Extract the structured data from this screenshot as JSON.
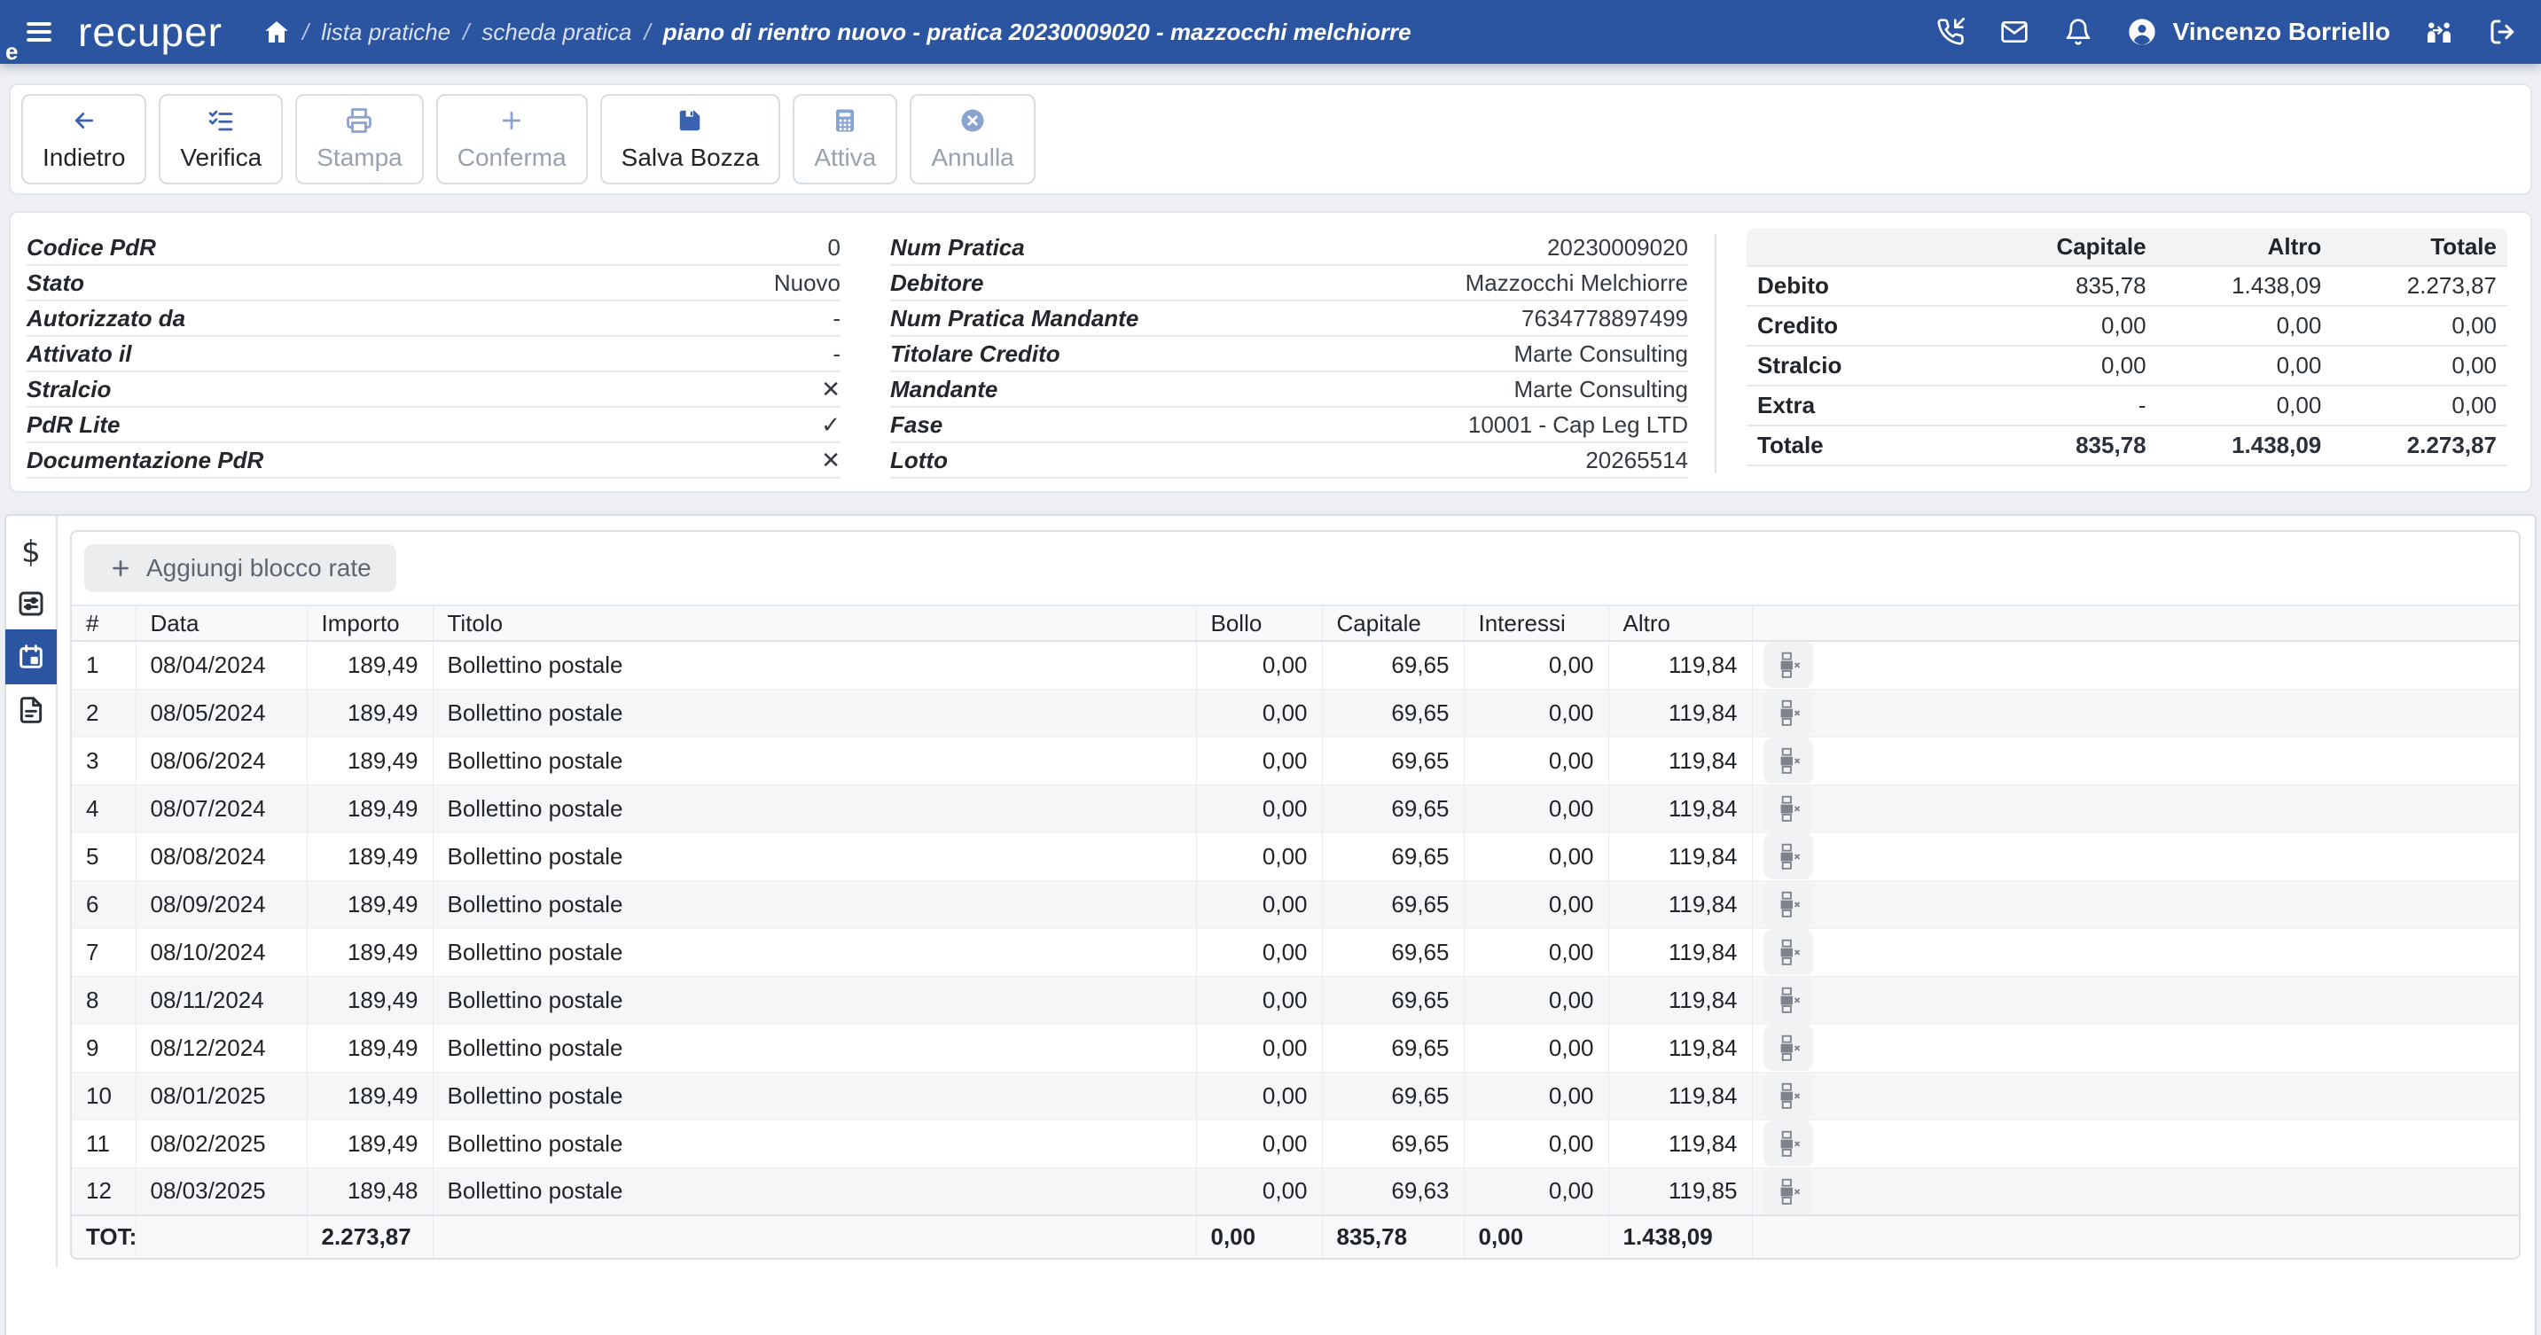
{
  "colors": {
    "navbar_bg": "#2c55a1",
    "page_bg": "#edeff3",
    "accent_blue": "#3a62ae",
    "active_tab_bg": "#2c55a1",
    "disabled_text": "#99a2ac",
    "text": "#212529",
    "table_header_bg": "#f8f9fa",
    "row_alt_bg": "#f5f6f8"
  },
  "navbar": {
    "logo": "recuper",
    "menu_overflow": "e",
    "breadcrumb": [
      "lista pratiche",
      "scheda pratica",
      "piano di rientro nuovo - pratica 20230009020 - mazzocchi melchiorre"
    ],
    "user_name": "Vincenzo Borriello"
  },
  "toolbar": {
    "buttons": [
      {
        "name": "indietro",
        "label": "Indietro",
        "icon": "arrow-left",
        "enabled": true
      },
      {
        "name": "verifica",
        "label": "Verifica",
        "icon": "list-check",
        "enabled": true
      },
      {
        "name": "stampa",
        "label": "Stampa",
        "icon": "printer",
        "enabled": false
      },
      {
        "name": "conferma",
        "label": "Conferma",
        "icon": "plus",
        "enabled": false
      },
      {
        "name": "salva-bozza",
        "label": "Salva Bozza",
        "icon": "save",
        "enabled": true
      },
      {
        "name": "attiva",
        "label": "Attiva",
        "icon": "calculator",
        "enabled": false
      },
      {
        "name": "annulla",
        "label": "Annulla",
        "icon": "x-circle",
        "enabled": false
      }
    ]
  },
  "details": {
    "left": [
      {
        "label": "Codice PdR",
        "value": "0"
      },
      {
        "label": "Stato",
        "value": "Nuovo"
      },
      {
        "label": "Autorizzato da",
        "value": "-"
      },
      {
        "label": "Attivato il",
        "value": "-"
      },
      {
        "label": "Stralcio",
        "value": "✕"
      },
      {
        "label": "PdR Lite",
        "value": "✓"
      },
      {
        "label": "Documentazione PdR",
        "value": "✕"
      }
    ],
    "right": [
      {
        "label": "Num Pratica",
        "value": "20230009020"
      },
      {
        "label": "Debitore",
        "value": "Mazzocchi Melchiorre"
      },
      {
        "label": "Num Pratica Mandante",
        "value": "7634778897499"
      },
      {
        "label": "Titolare Credito",
        "value": "Marte Consulting"
      },
      {
        "label": "Mandante",
        "value": "Marte Consulting"
      },
      {
        "label": "Fase",
        "value": "10001 - Cap Leg LTD"
      },
      {
        "label": "Lotto",
        "value": "20265514"
      }
    ]
  },
  "summary": {
    "columns": [
      "Capitale",
      "Altro",
      "Totale"
    ],
    "rows": [
      {
        "label": "Debito",
        "values": [
          "835,78",
          "1.438,09",
          "2.273,87"
        ],
        "bold": false
      },
      {
        "label": "Credito",
        "values": [
          "0,00",
          "0,00",
          "0,00"
        ],
        "bold": false
      },
      {
        "label": "Stralcio",
        "values": [
          "0,00",
          "0,00",
          "0,00"
        ],
        "bold": false
      },
      {
        "label": "Extra",
        "values": [
          "-",
          "0,00",
          "0,00"
        ],
        "bold": false
      },
      {
        "label": "Totale",
        "values": [
          "835,78",
          "1.438,09",
          "2.273,87"
        ],
        "bold": true
      }
    ]
  },
  "side_tabs": [
    {
      "name": "amounts",
      "icon": "dollar",
      "active": false
    },
    {
      "name": "settings",
      "icon": "sliders",
      "active": false
    },
    {
      "name": "rate-plan",
      "icon": "calendar",
      "active": true
    },
    {
      "name": "documents",
      "icon": "file-text",
      "active": false
    }
  ],
  "rate_section": {
    "add_button_label": "Aggiungi blocco rate",
    "columns": [
      "#",
      "Data",
      "Importo",
      "Titolo",
      "Bollo",
      "Capitale",
      "Interessi",
      "Altro",
      ""
    ],
    "rows": [
      {
        "n": "1",
        "data": "08/04/2024",
        "importo": "189,49",
        "titolo": "Bollettino postale",
        "bollo": "0,00",
        "capitale": "69,65",
        "interessi": "0,00",
        "altro": "119,84"
      },
      {
        "n": "2",
        "data": "08/05/2024",
        "importo": "189,49",
        "titolo": "Bollettino postale",
        "bollo": "0,00",
        "capitale": "69,65",
        "interessi": "0,00",
        "altro": "119,84"
      },
      {
        "n": "3",
        "data": "08/06/2024",
        "importo": "189,49",
        "titolo": "Bollettino postale",
        "bollo": "0,00",
        "capitale": "69,65",
        "interessi": "0,00",
        "altro": "119,84"
      },
      {
        "n": "4",
        "data": "08/07/2024",
        "importo": "189,49",
        "titolo": "Bollettino postale",
        "bollo": "0,00",
        "capitale": "69,65",
        "interessi": "0,00",
        "altro": "119,84"
      },
      {
        "n": "5",
        "data": "08/08/2024",
        "importo": "189,49",
        "titolo": "Bollettino postale",
        "bollo": "0,00",
        "capitale": "69,65",
        "interessi": "0,00",
        "altro": "119,84"
      },
      {
        "n": "6",
        "data": "08/09/2024",
        "importo": "189,49",
        "titolo": "Bollettino postale",
        "bollo": "0,00",
        "capitale": "69,65",
        "interessi": "0,00",
        "altro": "119,84"
      },
      {
        "n": "7",
        "data": "08/10/2024",
        "importo": "189,49",
        "titolo": "Bollettino postale",
        "bollo": "0,00",
        "capitale": "69,65",
        "interessi": "0,00",
        "altro": "119,84"
      },
      {
        "n": "8",
        "data": "08/11/2024",
        "importo": "189,49",
        "titolo": "Bollettino postale",
        "bollo": "0,00",
        "capitale": "69,65",
        "interessi": "0,00",
        "altro": "119,84"
      },
      {
        "n": "9",
        "data": "08/12/2024",
        "importo": "189,49",
        "titolo": "Bollettino postale",
        "bollo": "0,00",
        "capitale": "69,65",
        "interessi": "0,00",
        "altro": "119,84"
      },
      {
        "n": "10",
        "data": "08/01/2025",
        "importo": "189,49",
        "titolo": "Bollettino postale",
        "bollo": "0,00",
        "capitale": "69,65",
        "interessi": "0,00",
        "altro": "119,84"
      },
      {
        "n": "11",
        "data": "08/02/2025",
        "importo": "189,49",
        "titolo": "Bollettino postale",
        "bollo": "0,00",
        "capitale": "69,65",
        "interessi": "0,00",
        "altro": "119,84"
      },
      {
        "n": "12",
        "data": "08/03/2025",
        "importo": "189,48",
        "titolo": "Bollettino postale",
        "bollo": "0,00",
        "capitale": "69,63",
        "interessi": "0,00",
        "altro": "119,85"
      }
    ],
    "total": {
      "label": "TOT:",
      "importo": "2.273,87",
      "bollo": "0,00",
      "capitale": "835,78",
      "interessi": "0,00",
      "altro": "1.438,09"
    }
  }
}
